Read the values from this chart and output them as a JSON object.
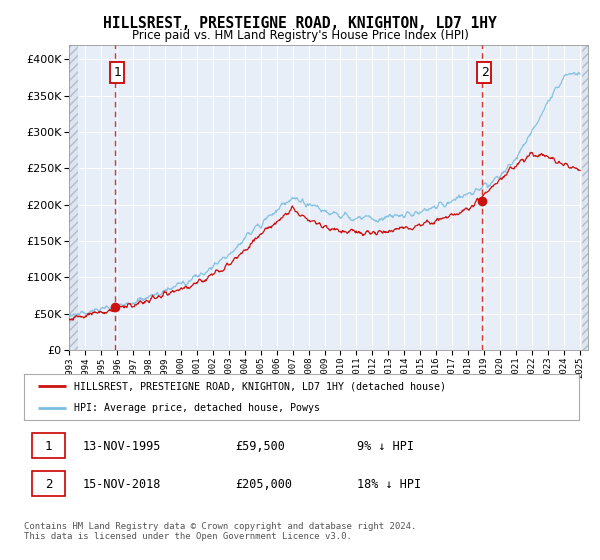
{
  "title": "HILLSREST, PRESTEIGNE ROAD, KNIGHTON, LD7 1HY",
  "subtitle": "Price paid vs. HM Land Registry's House Price Index (HPI)",
  "legend_line1": "HILLSREST, PRESTEIGNE ROAD, KNIGHTON, LD7 1HY (detached house)",
  "legend_line2": "HPI: Average price, detached house, Powys",
  "annotation1_date": "13-NOV-1995",
  "annotation1_price": "£59,500",
  "annotation1_hpi": "9% ↓ HPI",
  "annotation2_date": "15-NOV-2018",
  "annotation2_price": "£205,000",
  "annotation2_hpi": "18% ↓ HPI",
  "footer": "Contains HM Land Registry data © Crown copyright and database right 2024.\nThis data is licensed under the Open Government Licence v3.0.",
  "hpi_color": "#7bbde0",
  "price_color": "#cc1111",
  "dashed_line_color": "#dd3333",
  "plot_bg_color": "#e8eef8",
  "grid_color": "#ffffff",
  "ylim": [
    0,
    420000
  ],
  "yticks": [
    0,
    50000,
    100000,
    150000,
    200000,
    250000,
    300000,
    350000,
    400000
  ],
  "sale1_x": 1995.87,
  "sale1_y": 59500,
  "sale2_x": 2018.88,
  "sale2_y": 205000,
  "xmin": 1993.0,
  "xmax": 2025.5
}
